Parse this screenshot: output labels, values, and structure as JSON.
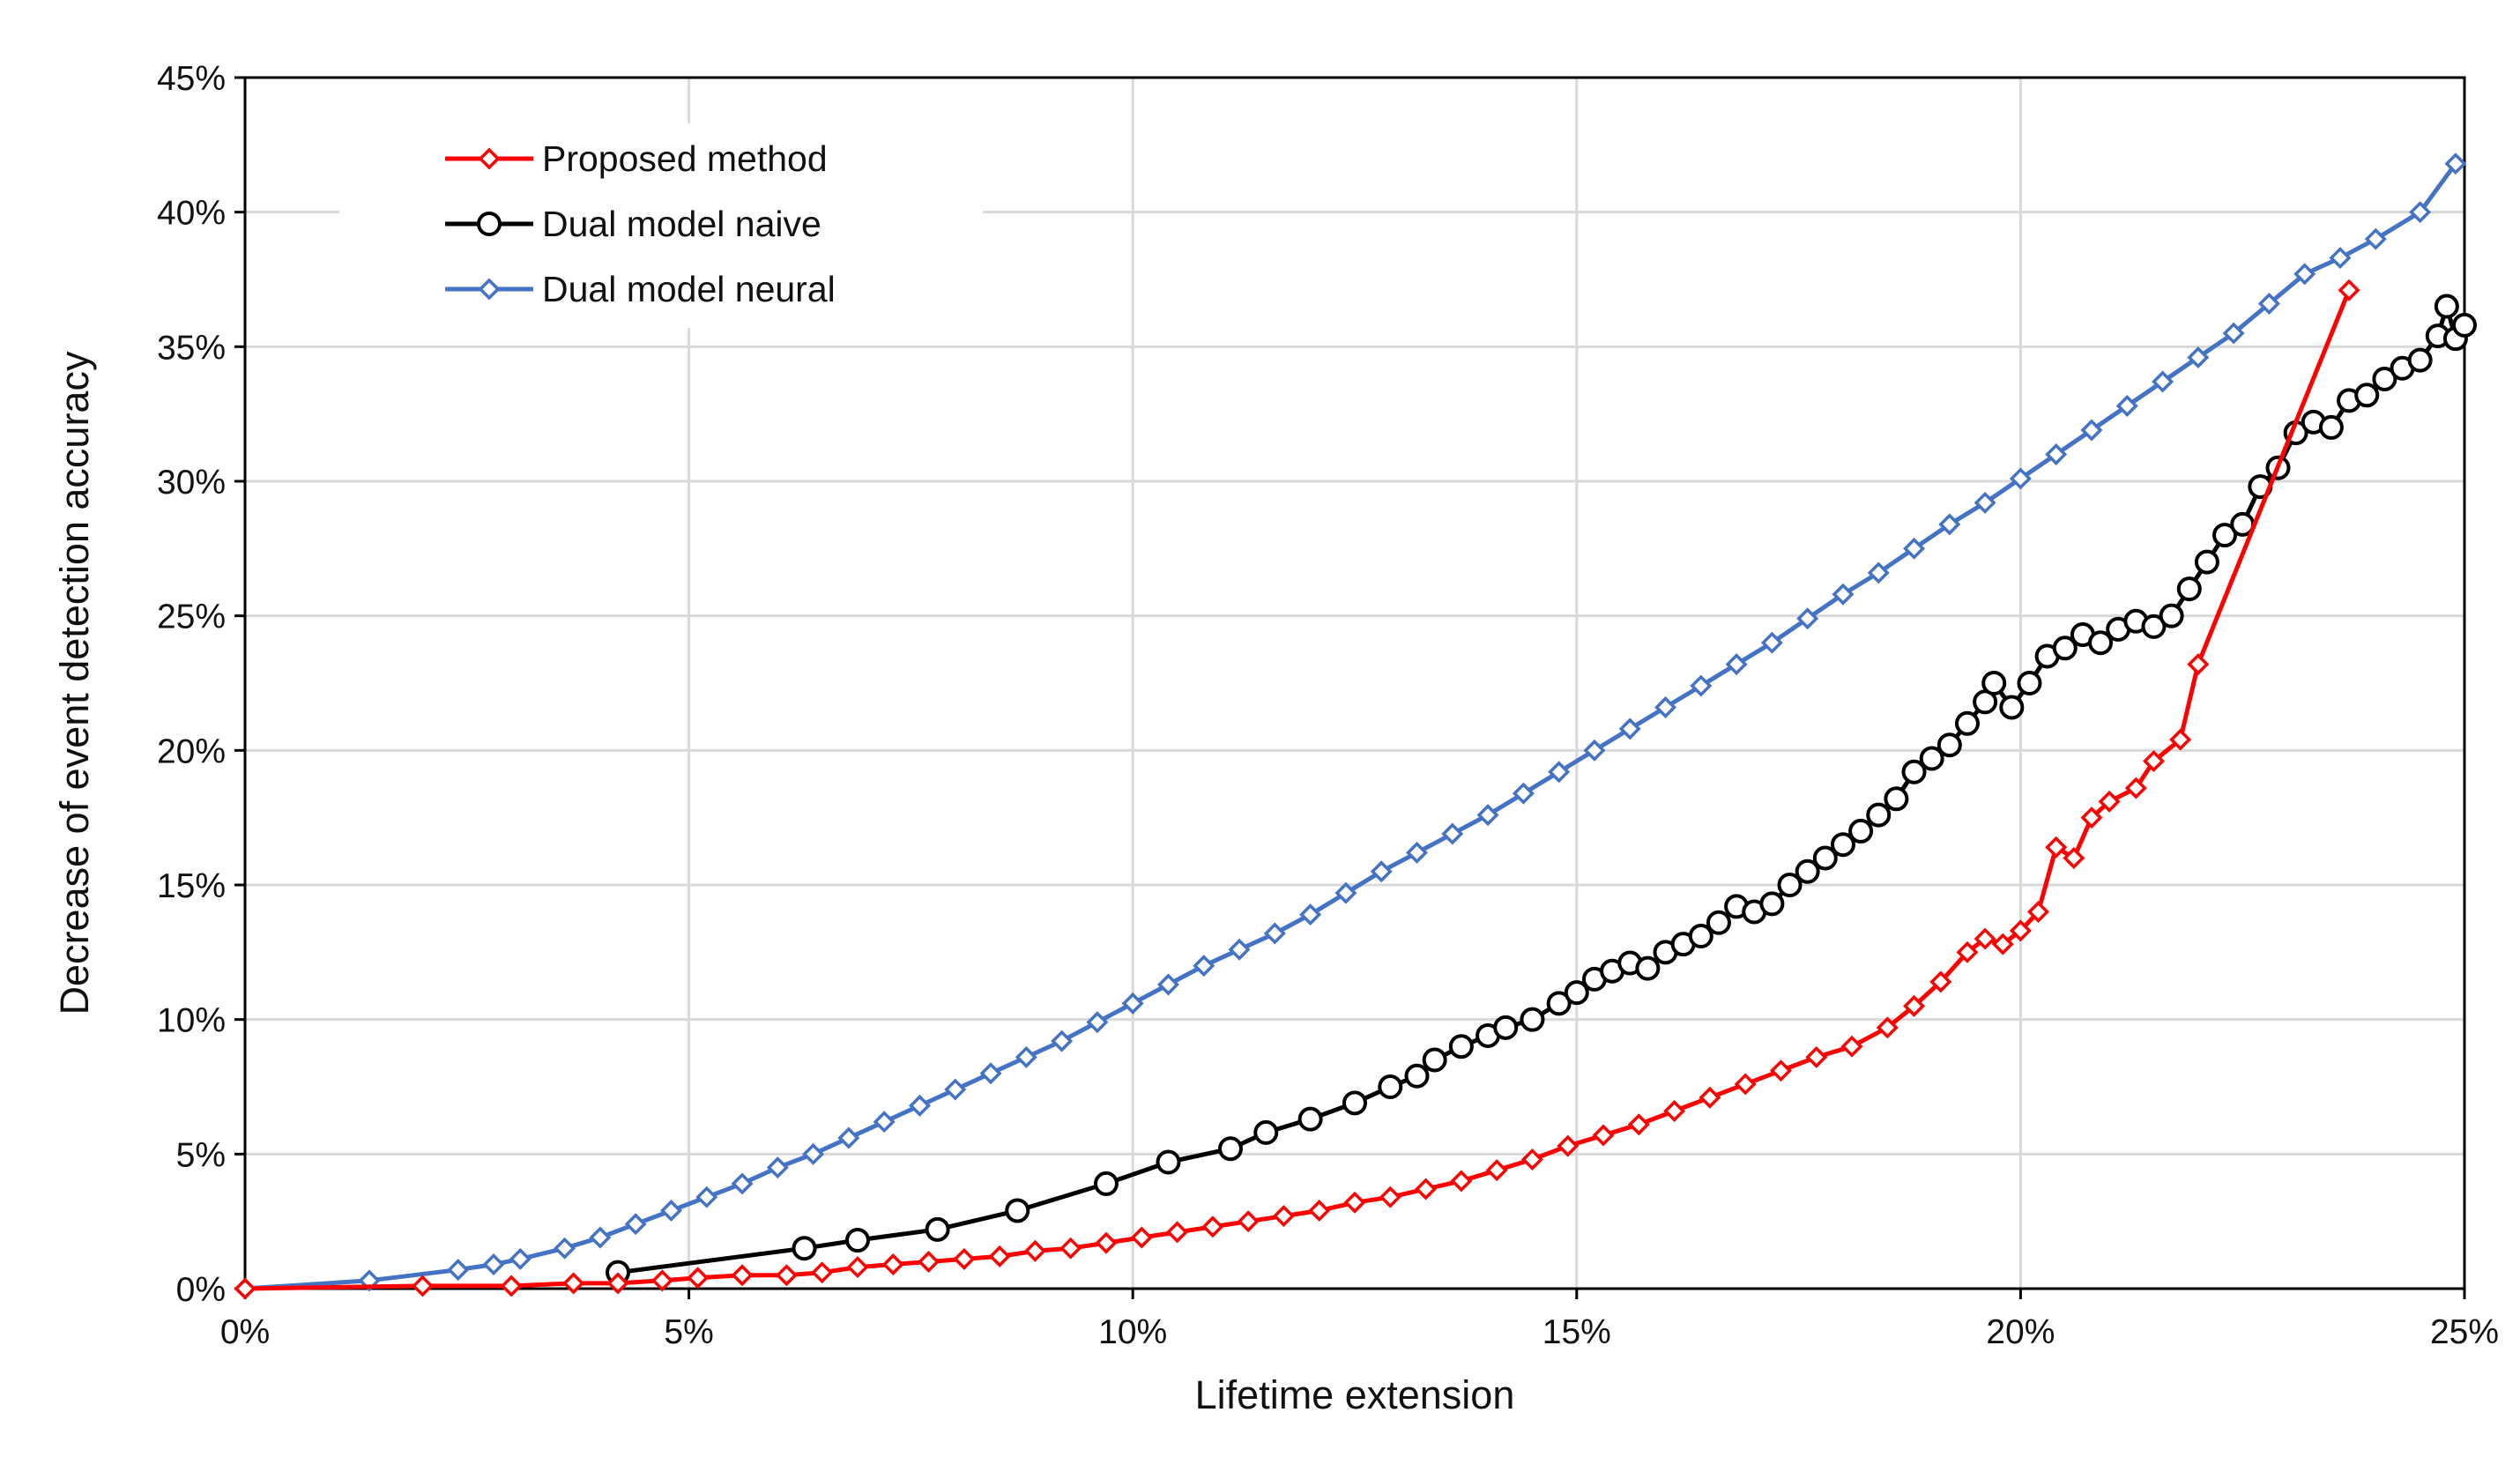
{
  "chart_data": {
    "type": "line",
    "title": "",
    "xlabel": "Lifetime extension",
    "ylabel": "Decrease of event detection accuracy",
    "xlim": [
      0,
      25
    ],
    "ylim": [
      0,
      45
    ],
    "x_ticks": [
      0,
      5,
      10,
      15,
      20,
      25
    ],
    "x_tick_labels": [
      "0%",
      "5%",
      "10%",
      "15%",
      "20%",
      "25%"
    ],
    "y_ticks": [
      0,
      5,
      10,
      15,
      20,
      25,
      30,
      35,
      40,
      45
    ],
    "y_tick_labels": [
      "0%",
      "5%",
      "10%",
      "15%",
      "20%",
      "25%",
      "30%",
      "35%",
      "40%",
      "45%"
    ],
    "grid": true,
    "legend_position": "top-left",
    "series": [
      {
        "name": "Proposed method",
        "color": "#ff0000",
        "marker": "diamond",
        "x": [
          0,
          2,
          3,
          3.7,
          4.2,
          4.7,
          5.1,
          5.6,
          6.1,
          6.5,
          6.9,
          7.3,
          7.7,
          8.1,
          8.5,
          8.9,
          9.3,
          9.7,
          10.1,
          10.5,
          10.9,
          11.3,
          11.7,
          12.1,
          12.5,
          12.9,
          13.3,
          13.7,
          14.1,
          14.5,
          14.9,
          15.3,
          15.7,
          16.1,
          16.5,
          16.9,
          17.3,
          17.7,
          18.1,
          18.5,
          18.8,
          19.1,
          19.4,
          19.6,
          19.8,
          20.0,
          20.2,
          20.4,
          20.6,
          20.8,
          21.0,
          21.3,
          21.5,
          21.8,
          22.0,
          23.7
        ],
        "y": [
          0,
          0.1,
          0.1,
          0.2,
          0.2,
          0.3,
          0.4,
          0.5,
          0.5,
          0.6,
          0.8,
          0.9,
          1.0,
          1.1,
          1.2,
          1.4,
          1.5,
          1.7,
          1.9,
          2.1,
          2.3,
          2.5,
          2.7,
          2.9,
          3.2,
          3.4,
          3.7,
          4.0,
          4.4,
          4.8,
          5.3,
          5.7,
          6.1,
          6.6,
          7.1,
          7.6,
          8.1,
          8.6,
          9.0,
          9.7,
          10.5,
          11.4,
          12.5,
          13.0,
          12.8,
          13.3,
          14.0,
          16.4,
          16.0,
          17.5,
          18.1,
          18.6,
          19.6,
          20.4,
          23.2,
          37.1
        ]
      },
      {
        "name": "Dual model naive",
        "color": "#000000",
        "marker": "circle",
        "x": [
          4.2,
          6.3,
          6.9,
          7.8,
          8.7,
          9.7,
          10.4,
          11.1,
          11.5,
          12.0,
          12.5,
          12.9,
          13.2,
          13.4,
          13.7,
          14.0,
          14.2,
          14.5,
          14.8,
          15.0,
          15.2,
          15.4,
          15.6,
          15.8,
          16.0,
          16.2,
          16.4,
          16.6,
          16.8,
          17.0,
          17.2,
          17.4,
          17.6,
          17.8,
          18.0,
          18.2,
          18.4,
          18.6,
          18.8,
          19.0,
          19.2,
          19.4,
          19.6,
          19.7,
          19.9,
          20.1,
          20.3,
          20.5,
          20.7,
          20.9,
          21.1,
          21.3,
          21.5,
          21.7,
          21.9,
          22.1,
          22.3,
          22.5,
          22.7,
          22.9,
          23.1,
          23.3,
          23.5,
          23.7,
          23.9,
          24.1,
          24.3,
          24.5,
          24.7,
          24.8,
          24.9,
          25.0
        ],
        "y": [
          0.6,
          1.5,
          1.8,
          2.2,
          2.9,
          3.9,
          4.7,
          5.2,
          5.8,
          6.3,
          6.9,
          7.5,
          7.9,
          8.5,
          9.0,
          9.4,
          9.7,
          10.0,
          10.6,
          11.0,
          11.5,
          11.8,
          12.1,
          11.9,
          12.5,
          12.8,
          13.1,
          13.6,
          14.2,
          14.0,
          14.3,
          15.0,
          15.5,
          16.0,
          16.5,
          17.0,
          17.6,
          18.2,
          19.2,
          19.7,
          20.2,
          21.0,
          21.8,
          22.5,
          21.6,
          22.5,
          23.5,
          23.8,
          24.3,
          24.0,
          24.5,
          24.8,
          24.6,
          25.0,
          26.0,
          27.0,
          28.0,
          28.4,
          29.8,
          30.5,
          31.8,
          32.2,
          32.0,
          33.0,
          33.2,
          33.8,
          34.2,
          34.5,
          35.4,
          36.5,
          35.3,
          35.8
        ]
      },
      {
        "name": "Dual model neural",
        "color": "#4472c4",
        "marker": "diamond",
        "x": [
          0,
          1.4,
          2.4,
          2.8,
          3.1,
          3.6,
          4.0,
          4.4,
          4.8,
          5.2,
          5.6,
          6.0,
          6.4,
          6.8,
          7.2,
          7.6,
          8.0,
          8.4,
          8.8,
          9.2,
          9.6,
          10.0,
          10.4,
          10.8,
          11.2,
          11.6,
          12.0,
          12.4,
          12.8,
          13.2,
          13.6,
          14.0,
          14.4,
          14.8,
          15.2,
          15.6,
          16.0,
          16.4,
          16.8,
          17.2,
          17.6,
          18.0,
          18.4,
          18.8,
          19.2,
          19.6,
          20.0,
          20.4,
          20.8,
          21.2,
          21.6,
          22.0,
          22.4,
          22.8,
          23.2,
          23.6,
          24.0,
          24.5,
          24.9
        ],
        "y": [
          0,
          0.3,
          0.7,
          0.9,
          1.1,
          1.5,
          1.9,
          2.4,
          2.9,
          3.4,
          3.9,
          4.5,
          5.0,
          5.6,
          6.2,
          6.8,
          7.4,
          8.0,
          8.6,
          9.2,
          9.9,
          10.6,
          11.3,
          12.0,
          12.6,
          13.2,
          13.9,
          14.7,
          15.5,
          16.2,
          16.9,
          17.6,
          18.4,
          19.2,
          20.0,
          20.8,
          21.6,
          22.4,
          23.2,
          24.0,
          24.9,
          25.8,
          26.6,
          27.5,
          28.4,
          29.2,
          30.1,
          31.0,
          31.9,
          32.8,
          33.7,
          34.6,
          35.5,
          36.6,
          37.7,
          38.3,
          39.0,
          40.0,
          41.8
        ]
      }
    ]
  }
}
